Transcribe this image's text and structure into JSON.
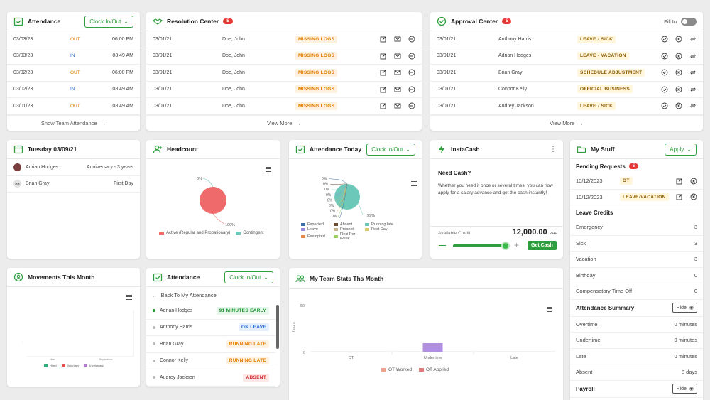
{
  "colors": {
    "accent": "#2e9e3e",
    "badge": "#e53935",
    "pie_red": "#ef6a6a",
    "pie_teal": "#6cc9b9"
  },
  "attendance": {
    "title": "Attendance",
    "clock_btn": "Clock In/Out",
    "footer": "Show Team Attendance",
    "rows": [
      {
        "date": "03/03/23",
        "dir": "OUT",
        "time": "06:00 PM"
      },
      {
        "date": "03/03/23",
        "dir": "IN",
        "time": "08:49 AM"
      },
      {
        "date": "03/02/23",
        "dir": "OUT",
        "time": "06:00 PM"
      },
      {
        "date": "03/02/23",
        "dir": "IN",
        "time": "08:49 AM"
      },
      {
        "date": "03/01/23",
        "dir": "OUT",
        "time": "08:49 AM"
      }
    ]
  },
  "resolution": {
    "title": "Resolution Center",
    "badge": "5",
    "footer": "View More",
    "rows": [
      {
        "date": "03/01/21",
        "name": "Doe, John",
        "status": "MISSING LOGS"
      },
      {
        "date": "03/01/21",
        "name": "Doe, John",
        "status": "MISSING LOGS"
      },
      {
        "date": "03/01/21",
        "name": "Doe, John",
        "status": "MISSING LOGS"
      },
      {
        "date": "03/01/21",
        "name": "Doe, John",
        "status": "MISSING LOGS"
      },
      {
        "date": "03/01/21",
        "name": "Doe, John",
        "status": "MISSING LOGS"
      }
    ]
  },
  "approval": {
    "title": "Approval Center",
    "badge": "5",
    "fill_in": "Fill In",
    "footer": "View More",
    "rows": [
      {
        "date": "03/01/21",
        "name": "Anthony Harris",
        "status": "LEAVE - SICK"
      },
      {
        "date": "03/01/21",
        "name": "Adrian Hodges",
        "status": "LEAVE - VACATION"
      },
      {
        "date": "03/01/21",
        "name": "Brian Gray",
        "status": "SCHEDULE ADJUSTMENT"
      },
      {
        "date": "03/01/21",
        "name": "Connor Kelly",
        "status": "OFFICIAL BUSINESS"
      },
      {
        "date": "03/01/21",
        "name": "Audrey Jackson",
        "status": "LEAVE - SICK"
      }
    ]
  },
  "calendar": {
    "title": "Tuesday 03/09/21",
    "rows": [
      {
        "initials": "",
        "name": "Adrian Hodges",
        "event": "Anniversary - 3 years"
      },
      {
        "initials": "AR",
        "name": "Brian Gray",
        "event": "First Day"
      }
    ]
  },
  "headcount": {
    "title": "Headcount",
    "label_top": "0%",
    "label_bottom": "100%",
    "legend": [
      {
        "name": "Active (Regular and Probationary)",
        "color": "#ef6a6a"
      },
      {
        "name": "Contingent",
        "color": "#6cc9b9"
      }
    ]
  },
  "attendance_today": {
    "title": "Attendance Today",
    "clock_btn": "Clock In/Out",
    "zero_labels": [
      "0%",
      "0%",
      "0%",
      "0%",
      "0%",
      "0%",
      "0%",
      "0%",
      "0%"
    ],
    "main_label": "99%",
    "legend": [
      {
        "name": "Expected",
        "color": "#3f6fa8"
      },
      {
        "name": "Absent",
        "color": "#6b4a2f"
      },
      {
        "name": "Running late",
        "color": "#6cc9b9"
      },
      {
        "name": "Leave",
        "color": "#9a8cd8"
      },
      {
        "name": "Present",
        "color": "#c7b48a"
      },
      {
        "name": "Rest Day",
        "color": "#d9c96a"
      },
      {
        "name": "Exempted",
        "color": "#e38a4e"
      },
      {
        "name": "Flexi Per Week",
        "color": "#9bcf6a"
      }
    ]
  },
  "instacash": {
    "title": "InstaCash",
    "heading": "Need Cash?",
    "body": "Whether you need it once or several times, you can now apply for a salary advance and get the cash instantly!",
    "credit_label": "Available Credit",
    "amount": "12,000.00",
    "currency": "PHP",
    "button": "Get Cash",
    "slider_level": 0.92
  },
  "mystuff": {
    "title": "My Stuff",
    "apply_btn": "Apply",
    "pending_label": "Pending Requests",
    "pending_badge": "5",
    "pending": [
      {
        "date": "10/12/2023",
        "type": "OT"
      },
      {
        "date": "10/12/2023",
        "type": "LEAVE-VACATION"
      }
    ],
    "leave_title": "Leave Credits",
    "leaves": [
      {
        "name": "Emergency",
        "value": "3"
      },
      {
        "name": "Sick",
        "value": "3"
      },
      {
        "name": "Vacation",
        "value": "3"
      },
      {
        "name": "Birthday",
        "value": "0"
      },
      {
        "name": "Compensatory Time Off",
        "value": "0"
      }
    ],
    "summary_title": "Attendance Summary",
    "hide": "Hide",
    "summary": [
      {
        "name": "Overtime",
        "value": "0 minutes"
      },
      {
        "name": "Undertime",
        "value": "0 minutes"
      },
      {
        "name": "Late",
        "value": "0 minutes"
      },
      {
        "name": "Absent",
        "value": "8 days"
      }
    ],
    "payroll_title": "Payroll"
  },
  "movements": {
    "title": "Movements This Month",
    "legend": [
      "Hired",
      "Voluntary",
      "Involuntary"
    ],
    "x_labels": [
      "Hires",
      "Separations"
    ]
  },
  "team_attendance": {
    "title": "Attendance",
    "clock_btn": "Clock In/Out",
    "back": "Back To My Attendance",
    "rows": [
      {
        "name": "Adrian Hodges",
        "status": "91 MINUTES EARLY",
        "kind": "green"
      },
      {
        "name": "Anthony Harris",
        "status": "ON LEAVE",
        "kind": "blue"
      },
      {
        "name": "Brian Gray",
        "status": "RUNNING LATE",
        "kind": "orange"
      },
      {
        "name": "Connor Kelly",
        "status": "RUNNING LATE",
        "kind": "orange"
      },
      {
        "name": "Audrey Jackson",
        "status": "ABSENT",
        "kind": "red"
      }
    ]
  },
  "team_stats": {
    "title": "My Team Stats Ths Month"
  },
  "chart_data": {
    "type": "bar",
    "categories": [
      "OT",
      "Undertime",
      "Late"
    ],
    "series": [
      {
        "name": "OT Worked",
        "values": [
          0,
          0,
          0
        ],
        "color": "#f0a48e"
      },
      {
        "name": "OT Applied",
        "values": [
          0,
          0,
          0
        ],
        "color": "#e07a7a"
      }
    ],
    "ylabel": "hours",
    "ylim": [
      0,
      50
    ],
    "y_ticks": [
      "50",
      "0"
    ]
  }
}
